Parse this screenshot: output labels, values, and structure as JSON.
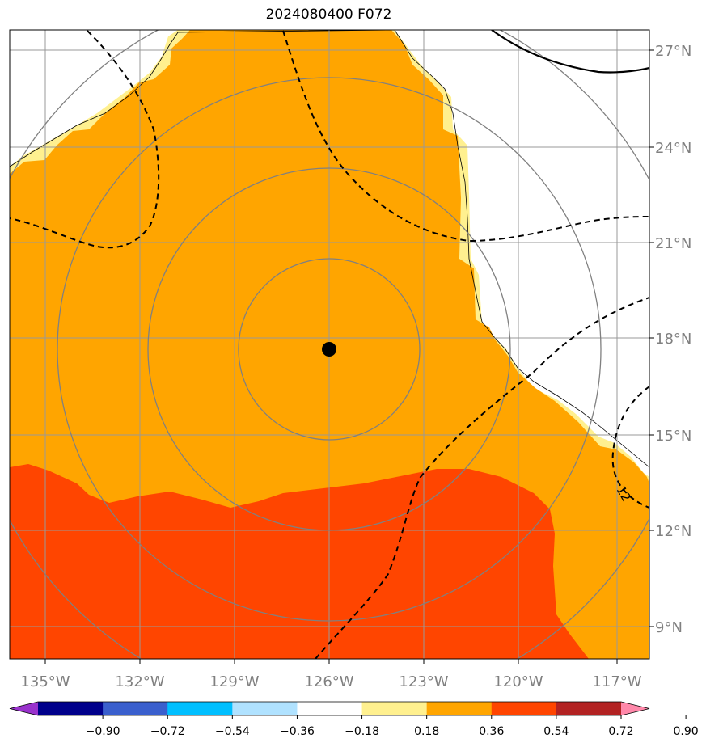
{
  "title": "2024080400 F072",
  "map": {
    "lat_labels": [
      "27°N",
      "24°N",
      "21°N",
      "18°N",
      "15°N",
      "12°N",
      "9°N"
    ],
    "lon_labels": [
      "135°W",
      "132°W",
      "129°W",
      "126°W",
      "123°W",
      "120°W",
      "117°W"
    ],
    "storm_center": {
      "lon": -126.0,
      "lat": 17.6
    },
    "contour_label": "12",
    "range_ring_count": 4,
    "grid_color": "#999999",
    "ring_color": "#808080"
  },
  "colorbar": {
    "ticks": [
      "−0.90",
      "−0.72",
      "−0.54",
      "−0.36",
      "−0.18",
      "0.18",
      "0.36",
      "0.54",
      "0.72",
      "0.90"
    ],
    "colors": [
      "#9932cc",
      "#00008b",
      "#3a5fcd",
      "#00bfff",
      "#b0e2ff",
      "#ffffff",
      "#fff08f",
      "#ffa500",
      "#ff4500",
      "#b22222",
      "#ff88aa"
    ]
  }
}
